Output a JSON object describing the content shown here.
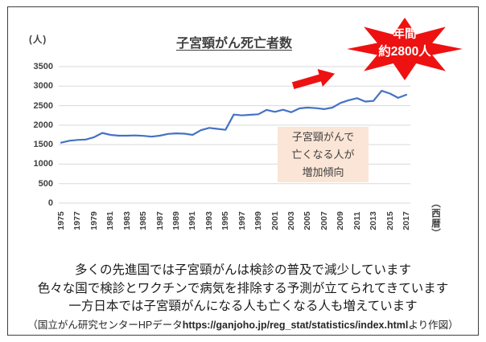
{
  "chart": {
    "title": "子宮頸がん死亡者数",
    "y_unit": "(人)",
    "x_unit": "（西暦）",
    "line_color": "#4472c4",
    "grid_color": "#d9d9d9",
    "accent_red": "#ee1111"
  },
  "chart_data": {
    "type": "line",
    "title": "子宮頸がん死亡者数",
    "xlabel": "西暦",
    "ylabel": "人",
    "x": [
      1975,
      1976,
      1977,
      1978,
      1979,
      1980,
      1981,
      1982,
      1983,
      1984,
      1985,
      1986,
      1987,
      1988,
      1989,
      1990,
      1991,
      1992,
      1993,
      1994,
      1995,
      1996,
      1997,
      1998,
      1999,
      2000,
      2001,
      2002,
      2003,
      2004,
      2005,
      2006,
      2007,
      2008,
      2009,
      2010,
      2011,
      2012,
      2013,
      2014,
      2015,
      2016,
      2017
    ],
    "values": [
      1550,
      1600,
      1620,
      1630,
      1690,
      1800,
      1750,
      1730,
      1730,
      1735,
      1725,
      1705,
      1730,
      1775,
      1790,
      1780,
      1750,
      1870,
      1930,
      1905,
      1880,
      2270,
      2250,
      2265,
      2280,
      2390,
      2340,
      2395,
      2330,
      2430,
      2450,
      2435,
      2410,
      2450,
      2570,
      2640,
      2690,
      2605,
      2620,
      2880,
      2810,
      2700,
      2780
    ],
    "ylim": [
      0,
      3500
    ],
    "y_ticks": [
      0,
      500,
      1000,
      1500,
      2000,
      2500,
      3000,
      3500
    ],
    "x_tick_labels": [
      "1975",
      "1977",
      "1979",
      "1981",
      "1983",
      "1985",
      "1987",
      "1989",
      "1991",
      "1993",
      "1995",
      "1997",
      "1999",
      "2001",
      "2003",
      "2005",
      "2007",
      "2009",
      "2011",
      "2013",
      "2015",
      "2017"
    ],
    "grid": "horizontal",
    "legend": "none"
  },
  "badge": {
    "line1": "年間",
    "line2": "約2800人",
    "fill": "#ee1111",
    "text_color": "#ffffff"
  },
  "annotation": {
    "bg": "#fbe5d6",
    "lines": [
      "子宮頸がんで",
      "亡くなる人が",
      "増加傾向"
    ]
  },
  "footer": {
    "lines": [
      "多くの先進国では子宮頸がんは検診の普及で減少しています",
      "色々な国で検診とワクチンで病気を排除する予測が立てられてきています",
      "一方日本では子宮頸がんになる人も亡くなる人も増えています"
    ],
    "source_prefix": "（国立がん研究センターHPデータ",
    "source_url": "https://ganjoho.jp/reg_stat/statistics/index.html",
    "source_suffix": "より作図）"
  }
}
